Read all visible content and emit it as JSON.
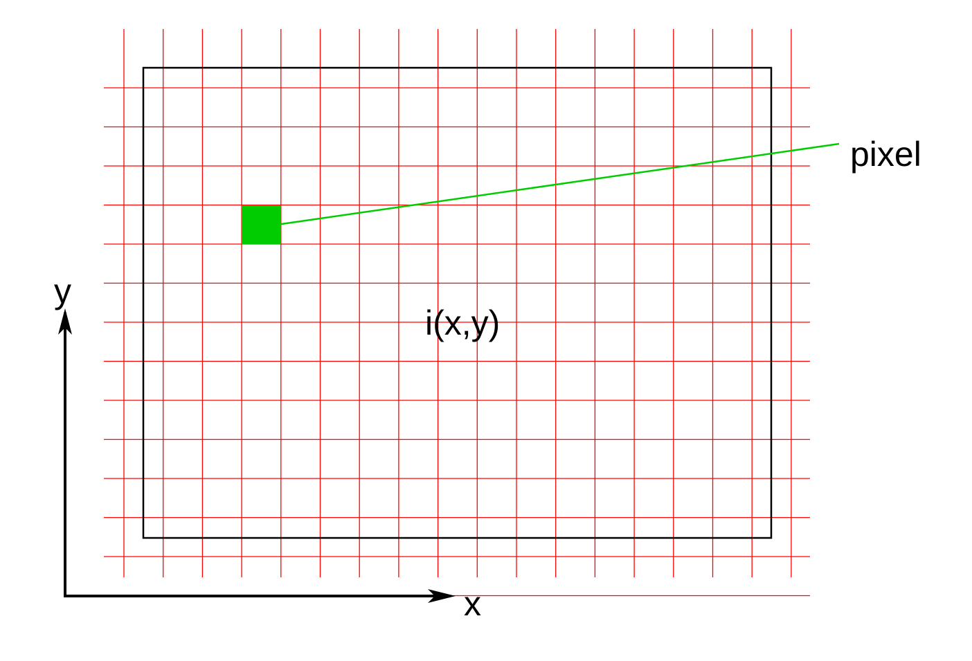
{
  "labels": {
    "pixel": "pixel",
    "function": "i(x,y)",
    "x_axis": "x",
    "y_axis": "y"
  },
  "grid": {
    "columns": 17,
    "rows": 13
  },
  "highlighted_pixel": {
    "column": 3,
    "row": 4
  },
  "colors": {
    "grid": "#ff0000",
    "pixel": "#00cc00",
    "leader": "#00cc00",
    "frame": "#000000",
    "axes": "#000000"
  }
}
